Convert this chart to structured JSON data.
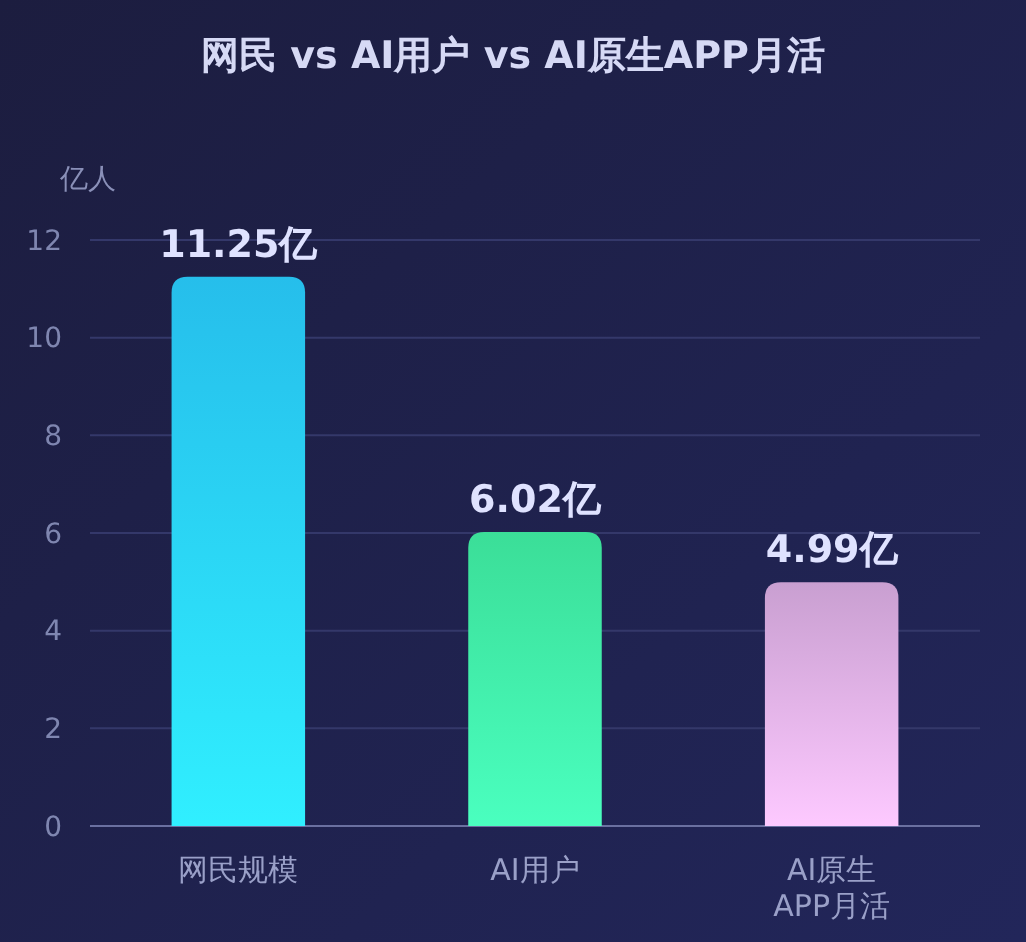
{
  "chart_data": {
    "type": "bar",
    "title": "网民 vs AI用户 vs AI原生APP月活",
    "ylabel": "亿人",
    "categories": [
      "网民规模",
      "AI用户",
      "AI原生APP月活"
    ],
    "values": [
      11.25,
      6.02,
      4.99
    ],
    "colors": [
      "#28c8f8",
      "#3eeaa0",
      "#d4a8dc"
    ],
    "value_labels": [
      "11.25亿",
      "6.02亿",
      "4.99亿"
    ],
    "ylim": [
      0,
      12
    ],
    "yticks": [
      0,
      2,
      4,
      6,
      8,
      10,
      12
    ],
    "grid": "y"
  }
}
